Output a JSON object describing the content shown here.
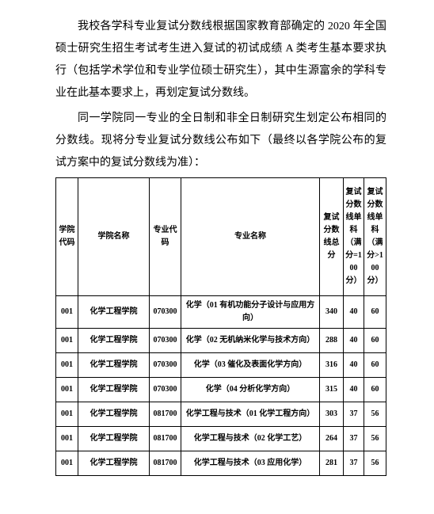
{
  "paragraphs": [
    "我校各学科专业复试分数线根据国家教育部确定的 2020 年全国硕士研究生招生考试考生进入复试的初试成绩 A 类考生基本要求执行（包括学术学位和专业学位硕士研究生），其中生源富余的学科专业在此基本要求上，再划定复试分数线。",
    "同一学院同一专业的全日制和非全日制研究生划定公布相同的分数线。现将分专业复试分数线公布如下（最终以各学院公布的复试方案中的复试分数线为准）："
  ],
  "table": {
    "headers": {
      "college_code": "学院代码",
      "college_name": "学院名称",
      "major_code": "专业代码",
      "major_name": "专业名称",
      "total": "复试分数线总分",
      "sub1": "复试分数线单科（满分=100 分）",
      "sub2": "复试分数线单科（满分>100 分）"
    },
    "rows": [
      {
        "college_code": "001",
        "college_name": "化学工程学院",
        "major_code": "070300",
        "major_name": "化学（01 有机功能分子设计与应用方向）",
        "total": "340",
        "sub1": "40",
        "sub2": "60"
      },
      {
        "college_code": "001",
        "college_name": "化学工程学院",
        "major_code": "070300",
        "major_name": "化学（02 无机纳米化学与技术方向）",
        "total": "288",
        "sub1": "40",
        "sub2": "60"
      },
      {
        "college_code": "001",
        "college_name": "化学工程学院",
        "major_code": "070300",
        "major_name": "化学（03 催化及表面化学方向）",
        "total": "316",
        "sub1": "40",
        "sub2": "60"
      },
      {
        "college_code": "001",
        "college_name": "化学工程学院",
        "major_code": "070300",
        "major_name": "化学（04 分析化学方向）",
        "total": "315",
        "sub1": "40",
        "sub2": "60"
      },
      {
        "college_code": "001",
        "college_name": "化学工程学院",
        "major_code": "081700",
        "major_name": "化学工程与技术（01 化学工程方向）",
        "total": "303",
        "sub1": "37",
        "sub2": "56"
      },
      {
        "college_code": "001",
        "college_name": "化学工程学院",
        "major_code": "081700",
        "major_name": "化学工程与技术（02 化学工艺）",
        "total": "264",
        "sub1": "37",
        "sub2": "56"
      },
      {
        "college_code": "001",
        "college_name": "化学工程学院",
        "major_code": "081700",
        "major_name": "化学工程与技术（03 应用化学）",
        "total": "281",
        "sub1": "37",
        "sub2": "56"
      }
    ]
  }
}
